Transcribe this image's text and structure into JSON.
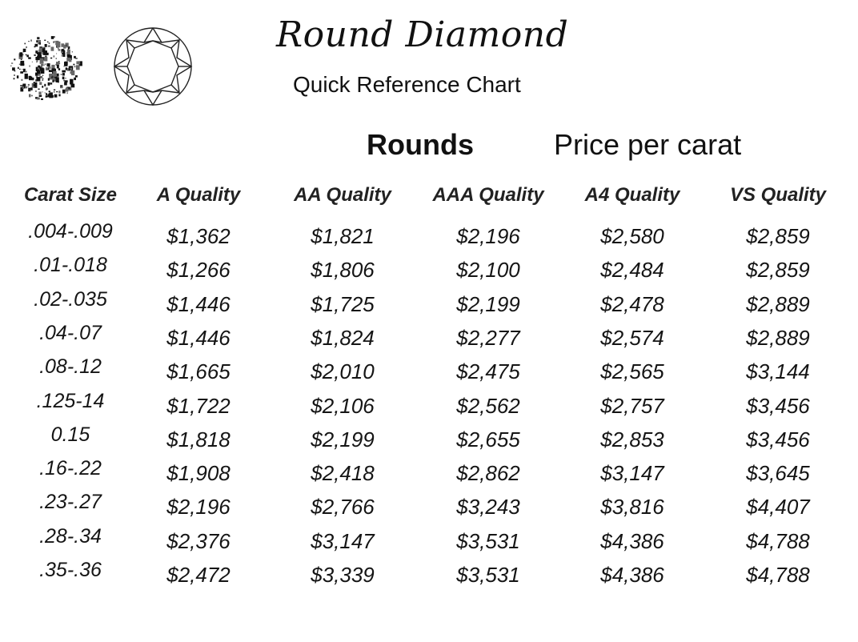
{
  "header": {
    "title": "Round Diamond",
    "subtitle": "Quick Reference Chart",
    "rounds": "Rounds",
    "price_per_carat": "Price per carat"
  },
  "icons": {
    "photo": "diamond-photo-icon",
    "outline": "diamond-outline-icon"
  },
  "table": {
    "columns": [
      "Carat Size",
      "A Quality",
      "AA Quality",
      "AAA Quality",
      "A4 Quality",
      "VS Quality"
    ],
    "rows": [
      [
        ".004-.009",
        "$1,362",
        "$1,821",
        "$2,196",
        "$2,580",
        "$2,859"
      ],
      [
        ".01-.018",
        "$1,266",
        "$1,806",
        "$2,100",
        "$2,484",
        "$2,859"
      ],
      [
        ".02-.035",
        "$1,446",
        "$1,725",
        "$2,199",
        "$2,478",
        "$2,889"
      ],
      [
        ".04-.07",
        "$1,446",
        "$1,824",
        "$2,277",
        "$2,574",
        "$2,889"
      ],
      [
        ".08-.12",
        "$1,665",
        "$2,010",
        "$2,475",
        "$2,565",
        "$3,144"
      ],
      [
        ".125-14",
        "$1,722",
        "$2,106",
        "$2,562",
        "$2,757",
        "$3,456"
      ],
      [
        "0.15",
        "$1,818",
        "$2,199",
        "$2,655",
        "$2,853",
        "$3,456"
      ],
      [
        ".16-.22",
        "$1,908",
        "$2,418",
        "$2,862",
        "$3,147",
        "$3,645"
      ],
      [
        ".23-.27",
        "$2,196",
        "$2,766",
        "$3,243",
        "$3,816",
        "$4,407"
      ],
      [
        ".28-.34",
        "$2,376",
        "$3,147",
        "$3,531",
        "$4,386",
        "$4,788"
      ],
      [
        ".35-.36",
        "$2,472",
        "$3,339",
        "$3,531",
        "$4,386",
        "$4,788"
      ]
    ]
  }
}
